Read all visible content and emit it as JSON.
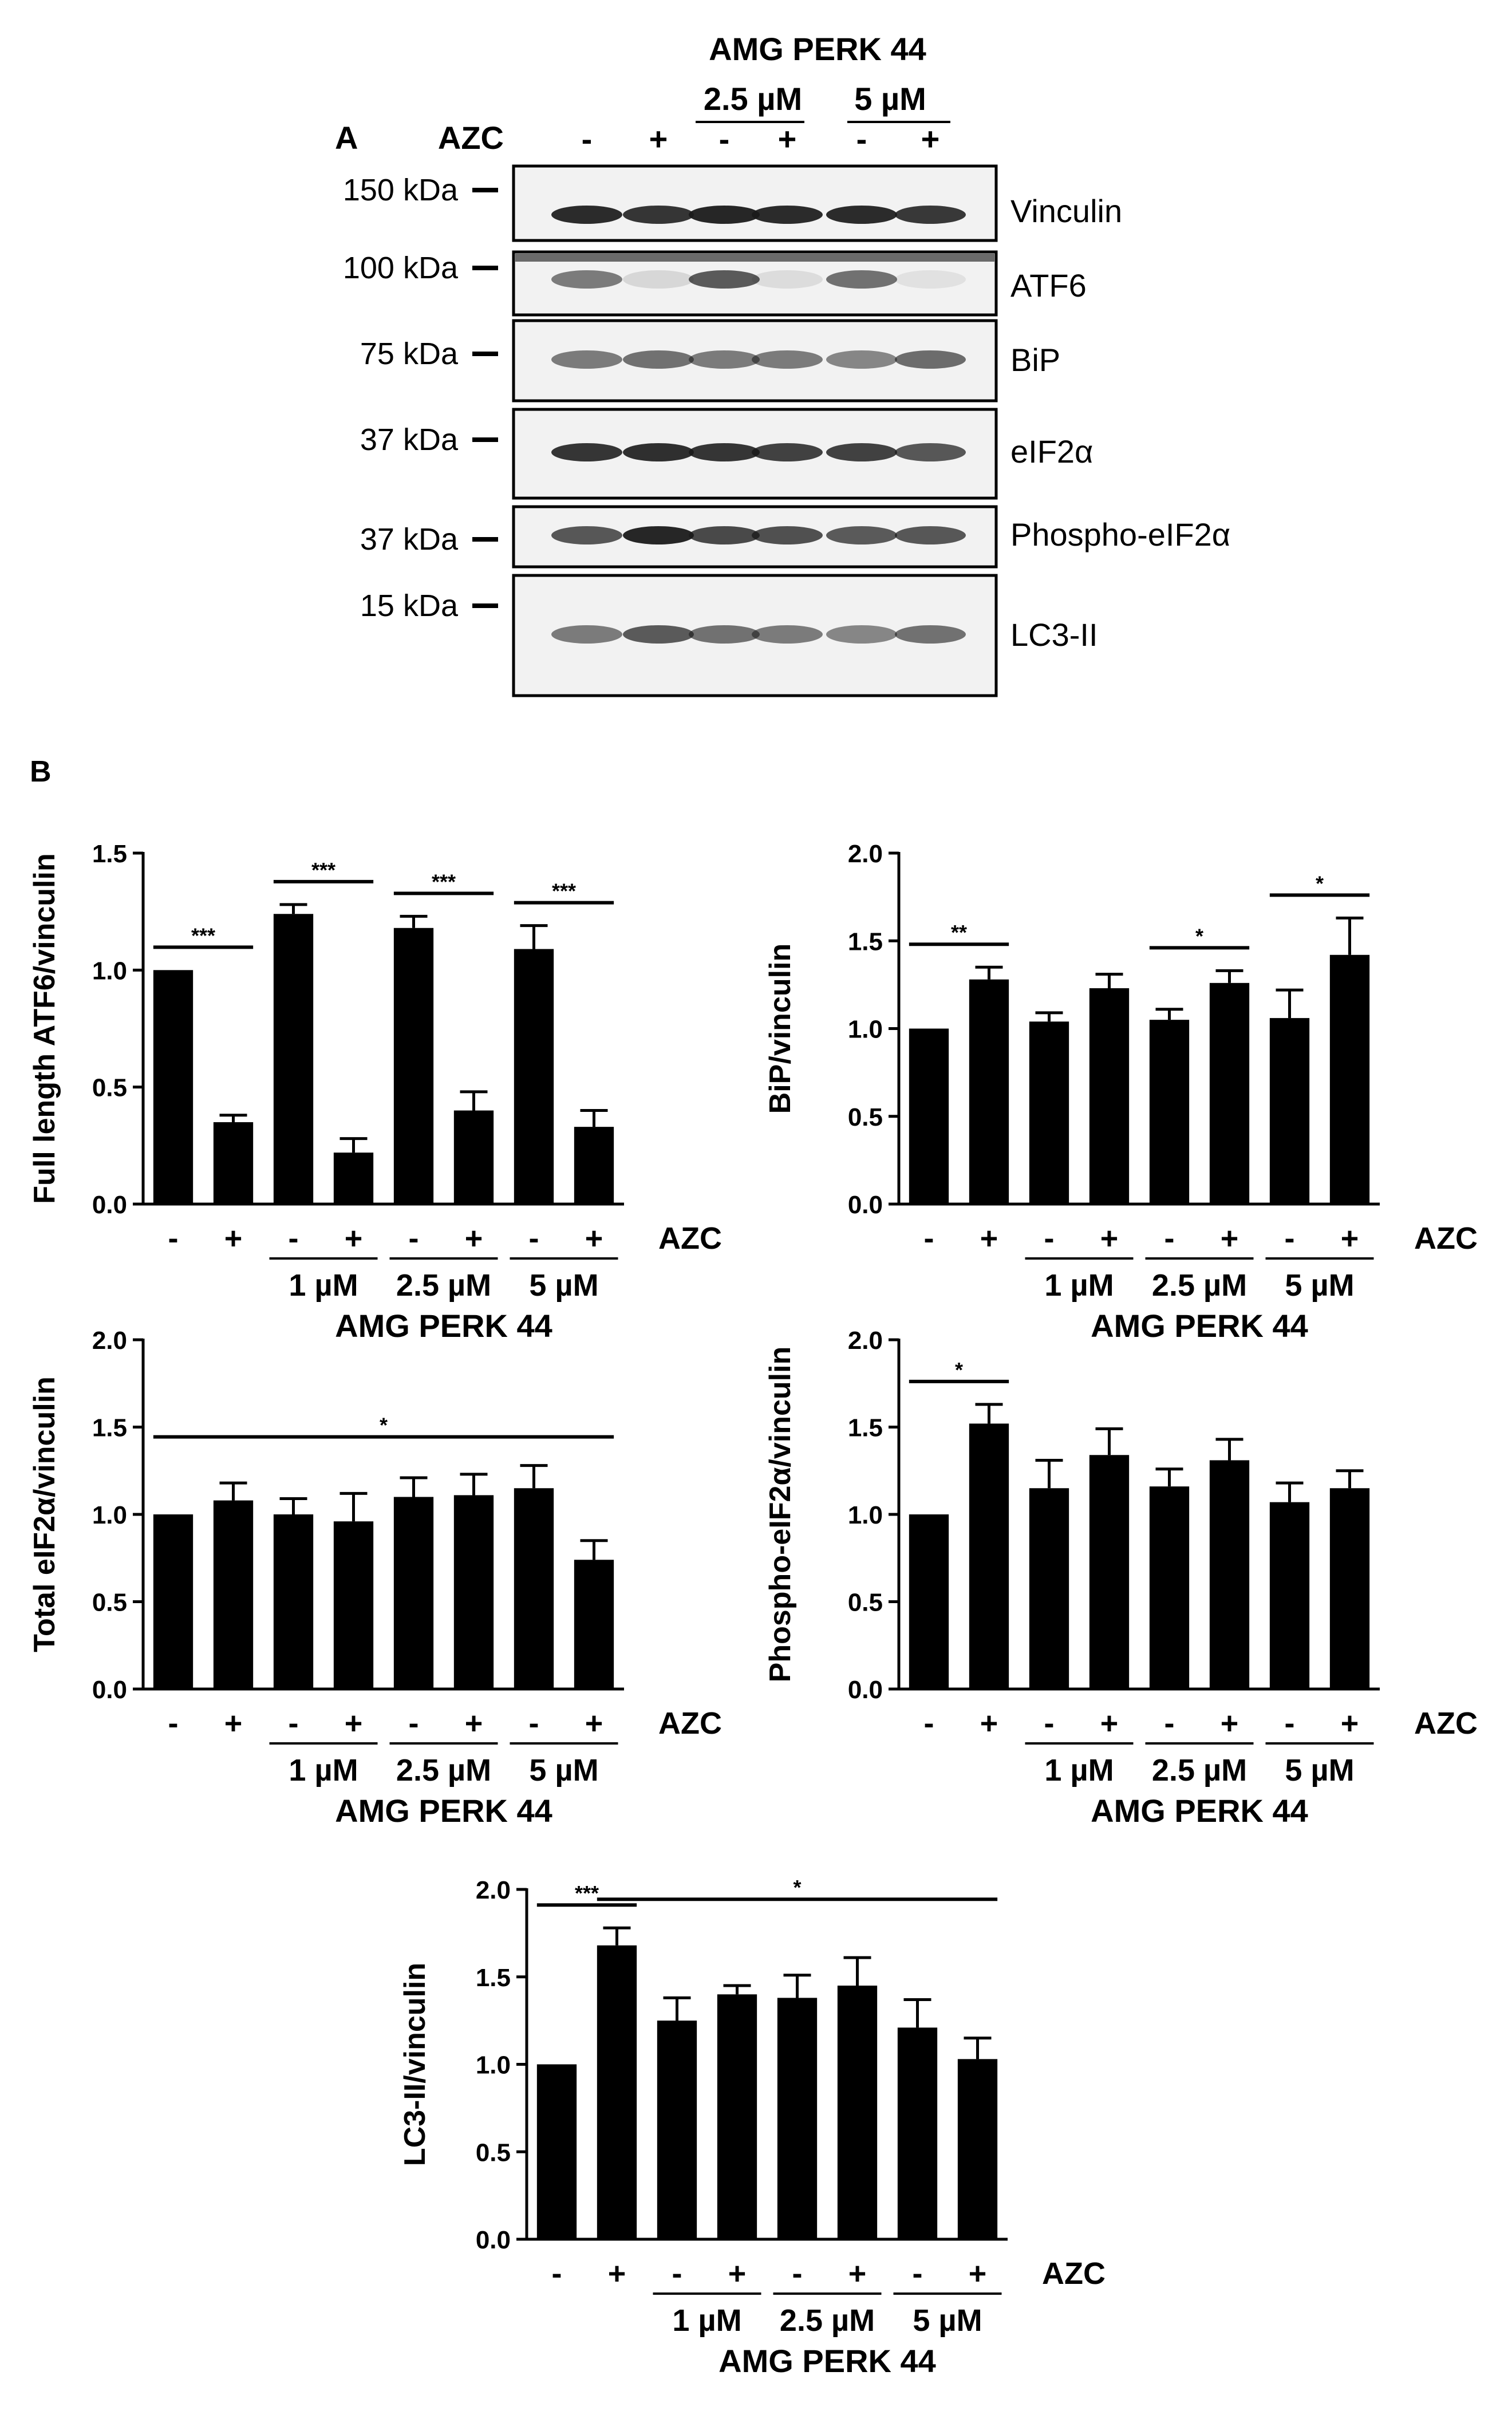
{
  "panel_a": {
    "label": "A",
    "treatment_label": "AZC",
    "inhibitor_title": "AMG PERK 44",
    "doses": [
      "2.5 µM",
      "5 µM"
    ],
    "lane_signs": [
      "-",
      "+",
      "-",
      "+",
      "-",
      "+"
    ],
    "blots": [
      {
        "marker": "150 kDa",
        "protein": "Vinculin",
        "intensity": [
          0.92,
          0.88,
          0.95,
          0.92,
          0.92,
          0.86
        ]
      },
      {
        "marker": "100 kDa",
        "protein": "ATF6",
        "intensity": [
          0.55,
          0.12,
          0.7,
          0.1,
          0.6,
          0.08
        ]
      },
      {
        "marker": "75 kDa",
        "protein": "BiP",
        "intensity": [
          0.55,
          0.6,
          0.55,
          0.55,
          0.5,
          0.62
        ]
      },
      {
        "marker": "37 kDa",
        "protein": "eIF2α",
        "intensity": [
          0.88,
          0.9,
          0.88,
          0.82,
          0.82,
          0.72
        ]
      },
      {
        "marker": "37 kDa",
        "protein": "Phospho-eIF2α",
        "intensity": [
          0.72,
          0.95,
          0.78,
          0.75,
          0.7,
          0.72
        ]
      },
      {
        "marker": "15 kDa",
        "protein": "LC3-II",
        "intensity": [
          0.55,
          0.7,
          0.6,
          0.55,
          0.5,
          0.6
        ]
      }
    ]
  },
  "panel_b": {
    "label": "B",
    "treatment_label": "AZC",
    "inhibitor_title": "AMG PERK 44",
    "doses": [
      "1 µM",
      "2.5 µM",
      "5 µM"
    ],
    "bar_signs": [
      "-",
      "+",
      "-",
      "+",
      "-",
      "+",
      "-",
      "+"
    ]
  },
  "colors": {
    "bar": "#000000",
    "blot_background": "#f2f2f2",
    "band": "#1a1a1a"
  },
  "chart_data": [
    {
      "type": "bar",
      "ylabel": "Full length ATF6/vinculin",
      "ylim": [
        0,
        1.5
      ],
      "yticks": [
        "0.0",
        "0.5",
        "1.0",
        "1.5"
      ],
      "categories": [
        "-",
        "+",
        "-",
        "+",
        "-",
        "+",
        "-",
        "+"
      ],
      "values": [
        1.0,
        0.35,
        1.24,
        0.22,
        1.18,
        0.4,
        1.09,
        0.33
      ],
      "errors": [
        0.0,
        0.03,
        0.04,
        0.06,
        0.05,
        0.08,
        0.1,
        0.07
      ],
      "significance": [
        {
          "from": 0,
          "to": 1,
          "label": "***"
        },
        {
          "from": 2,
          "to": 3,
          "label": "***"
        },
        {
          "from": 4,
          "to": 5,
          "label": "***"
        },
        {
          "from": 6,
          "to": 7,
          "label": "***"
        }
      ]
    },
    {
      "type": "bar",
      "ylabel": "BiP/vinculin",
      "ylim": [
        0,
        2.0
      ],
      "yticks": [
        "0.0",
        "0.5",
        "1.0",
        "1.5",
        "2.0"
      ],
      "categories": [
        "-",
        "+",
        "-",
        "+",
        "-",
        "+",
        "-",
        "+"
      ],
      "values": [
        1.0,
        1.28,
        1.04,
        1.23,
        1.05,
        1.26,
        1.06,
        1.42
      ],
      "errors": [
        0.0,
        0.07,
        0.05,
        0.08,
        0.06,
        0.07,
        0.16,
        0.21
      ],
      "significance": [
        {
          "from": 0,
          "to": 1,
          "label": "**"
        },
        {
          "from": 4,
          "to": 5,
          "label": "*"
        },
        {
          "from": 6,
          "to": 7,
          "label": "*"
        }
      ]
    },
    {
      "type": "bar",
      "ylabel": "Total eIF2α/vinculin",
      "ylim": [
        0,
        2.0
      ],
      "yticks": [
        "0.0",
        "0.5",
        "1.0",
        "1.5",
        "2.0"
      ],
      "categories": [
        "-",
        "+",
        "-",
        "+",
        "-",
        "+",
        "-",
        "+"
      ],
      "values": [
        1.0,
        1.08,
        1.0,
        0.96,
        1.1,
        1.11,
        1.15,
        0.74
      ],
      "errors": [
        0.0,
        0.1,
        0.09,
        0.16,
        0.11,
        0.12,
        0.13,
        0.11
      ],
      "significance": [
        {
          "from": 0,
          "to": 7,
          "label": "*"
        }
      ]
    },
    {
      "type": "bar",
      "ylabel": "Phospho-eIF2α/vinculin",
      "ylim": [
        0,
        2.0
      ],
      "yticks": [
        "0.0",
        "0.5",
        "1.0",
        "1.5",
        "2.0"
      ],
      "categories": [
        "-",
        "+",
        "-",
        "+",
        "-",
        "+",
        "-",
        "+"
      ],
      "values": [
        1.0,
        1.52,
        1.15,
        1.34,
        1.16,
        1.31,
        1.07,
        1.15
      ],
      "errors": [
        0.0,
        0.11,
        0.16,
        0.15,
        0.1,
        0.12,
        0.11,
        0.1
      ],
      "significance": [
        {
          "from": 0,
          "to": 1,
          "label": "*"
        }
      ]
    },
    {
      "type": "bar",
      "ylabel": "LC3-II/vinculin",
      "ylim": [
        0,
        2.0
      ],
      "yticks": [
        "0.0",
        "0.5",
        "1.0",
        "1.5",
        "2.0"
      ],
      "categories": [
        "-",
        "+",
        "-",
        "+",
        "-",
        "+",
        "-",
        "+"
      ],
      "values": [
        1.0,
        1.68,
        1.25,
        1.4,
        1.38,
        1.45,
        1.21,
        1.03
      ],
      "errors": [
        0.0,
        0.1,
        0.13,
        0.05,
        0.13,
        0.16,
        0.16,
        0.12
      ],
      "significance": [
        {
          "from": 0,
          "to": 1,
          "label": "***"
        },
        {
          "from": 1,
          "to": 7,
          "label": "*"
        }
      ]
    }
  ]
}
